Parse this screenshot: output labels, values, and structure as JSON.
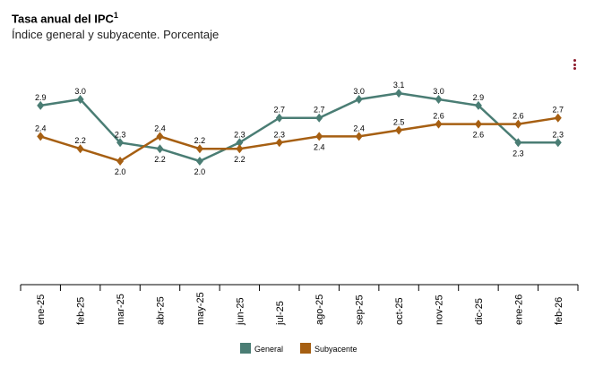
{
  "header": {
    "title": "Tasa anual del IPC",
    "title_sup": "1",
    "subtitle": "Índice general y subyacente. Porcentaje",
    "menu_icon": "vertical-dots-icon"
  },
  "chart_data": {
    "type": "line",
    "title": "Tasa anual del IPC",
    "subtitle": "Índice general y subyacente. Porcentaje",
    "categories": [
      "ene-25",
      "feb-25",
      "mar-25",
      "abr-25",
      "may-25",
      "jun-25",
      "jul-25",
      "ago-25",
      "sep-25",
      "oct-25",
      "nov-25",
      "dic-25",
      "ene-26",
      "feb-26"
    ],
    "series": [
      {
        "name": "General",
        "color": "#4a7d74",
        "values": [
          2.9,
          3.0,
          2.3,
          2.2,
          2.0,
          2.3,
          2.7,
          2.7,
          3.0,
          3.1,
          3.0,
          2.9,
          2.3,
          2.3
        ]
      },
      {
        "name": "Subyacente",
        "color": "#a65f12",
        "values": [
          2.4,
          2.2,
          2.0,
          2.4,
          2.2,
          2.2,
          2.3,
          2.4,
          2.4,
          2.5,
          2.6,
          2.6,
          2.6,
          2.7
        ]
      }
    ],
    "ylim": [
      0,
      3.5
    ],
    "grid": false,
    "data_labels": true,
    "legend": "bottom"
  }
}
